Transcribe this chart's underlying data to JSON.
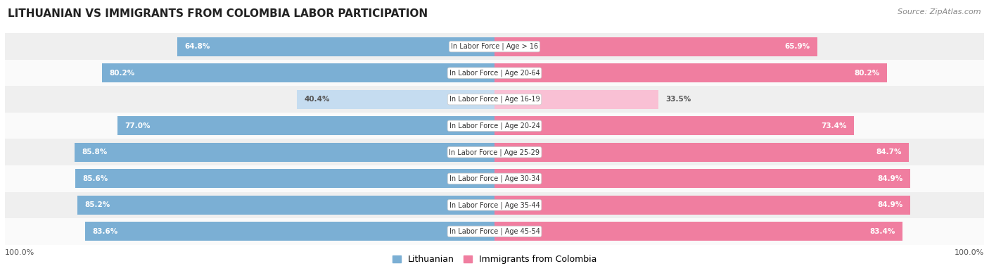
{
  "title": "LITHUANIAN VS IMMIGRANTS FROM COLOMBIA LABOR PARTICIPATION",
  "source": "Source: ZipAtlas.com",
  "categories": [
    "In Labor Force | Age > 16",
    "In Labor Force | Age 20-64",
    "In Labor Force | Age 16-19",
    "In Labor Force | Age 20-24",
    "In Labor Force | Age 25-29",
    "In Labor Force | Age 30-34",
    "In Labor Force | Age 35-44",
    "In Labor Force | Age 45-54"
  ],
  "lithuanian_values": [
    64.8,
    80.2,
    40.4,
    77.0,
    85.8,
    85.6,
    85.2,
    83.6
  ],
  "colombia_values": [
    65.9,
    80.2,
    33.5,
    73.4,
    84.7,
    84.9,
    84.9,
    83.4
  ],
  "max_value": 100.0,
  "lithuanian_color": "#7BAFD4",
  "lithuanian_color_light": "#C5DCF0",
  "colombia_color": "#F07EA0",
  "colombia_color_light": "#F9C0D4",
  "row_bg_even": "#EFEFEF",
  "row_bg_odd": "#FAFAFA",
  "legend_lithuanian": "Lithuanian",
  "legend_colombia": "Immigrants from Colombia",
  "bottom_label": "100.0%"
}
